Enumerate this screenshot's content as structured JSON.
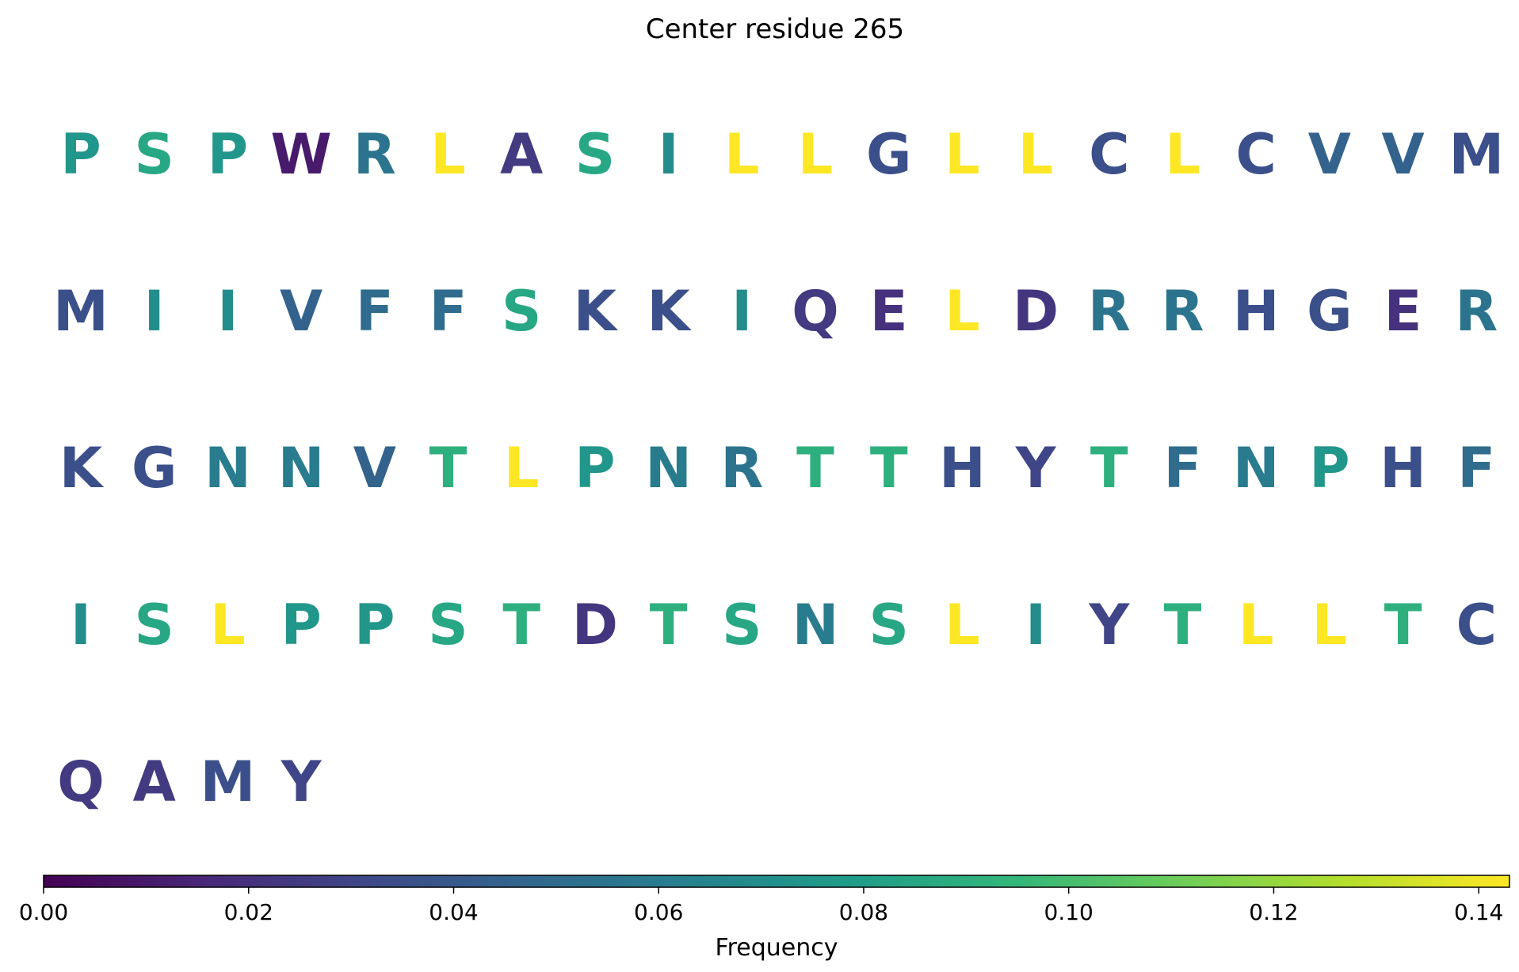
{
  "chart_data": {
    "type": "heatmap",
    "title": "Center residue 265",
    "colormap": "viridis",
    "colorbar": {
      "label": "Frequency",
      "range": [
        0,
        0.143
      ],
      "ticks": [
        "0.00",
        "0.02",
        "0.04",
        "0.06",
        "0.08",
        "0.10",
        "0.12",
        "0.14"
      ],
      "tick_values": [
        0,
        0.02,
        0.04,
        0.06,
        0.08,
        0.1,
        0.12,
        0.14
      ],
      "orientation": "horizontal",
      "placement": "bottom"
    },
    "columns": 20,
    "residues": [
      {
        "letter": "P",
        "value": 0.075
      },
      {
        "letter": "S",
        "value": 0.085
      },
      {
        "letter": "P",
        "value": 0.075
      },
      {
        "letter": "W",
        "value": 0.01
      },
      {
        "letter": "R",
        "value": 0.055
      },
      {
        "letter": "L",
        "value": 0.143
      },
      {
        "letter": "A",
        "value": 0.025
      },
      {
        "letter": "S",
        "value": 0.085
      },
      {
        "letter": "I",
        "value": 0.07
      },
      {
        "letter": "L",
        "value": 0.143
      },
      {
        "letter": "L",
        "value": 0.143
      },
      {
        "letter": "G",
        "value": 0.035
      },
      {
        "letter": "L",
        "value": 0.143
      },
      {
        "letter": "L",
        "value": 0.143
      },
      {
        "letter": "C",
        "value": 0.035
      },
      {
        "letter": "L",
        "value": 0.143
      },
      {
        "letter": "C",
        "value": 0.035
      },
      {
        "letter": "V",
        "value": 0.045
      },
      {
        "letter": "V",
        "value": 0.045
      },
      {
        "letter": "M",
        "value": 0.035
      },
      {
        "letter": "M",
        "value": 0.035
      },
      {
        "letter": "I",
        "value": 0.07
      },
      {
        "letter": "I",
        "value": 0.07
      },
      {
        "letter": "V",
        "value": 0.045
      },
      {
        "letter": "F",
        "value": 0.05
      },
      {
        "letter": "F",
        "value": 0.05
      },
      {
        "letter": "S",
        "value": 0.085
      },
      {
        "letter": "K",
        "value": 0.035
      },
      {
        "letter": "K",
        "value": 0.035
      },
      {
        "letter": "I",
        "value": 0.07
      },
      {
        "letter": "Q",
        "value": 0.025
      },
      {
        "letter": "E",
        "value": 0.02
      },
      {
        "letter": "L",
        "value": 0.143
      },
      {
        "letter": "D",
        "value": 0.022
      },
      {
        "letter": "R",
        "value": 0.055
      },
      {
        "letter": "R",
        "value": 0.055
      },
      {
        "letter": "H",
        "value": 0.035
      },
      {
        "letter": "G",
        "value": 0.035
      },
      {
        "letter": "E",
        "value": 0.02
      },
      {
        "letter": "R",
        "value": 0.055
      },
      {
        "letter": "K",
        "value": 0.035
      },
      {
        "letter": "G",
        "value": 0.035
      },
      {
        "letter": "N",
        "value": 0.06
      },
      {
        "letter": "N",
        "value": 0.06
      },
      {
        "letter": "V",
        "value": 0.045
      },
      {
        "letter": "T",
        "value": 0.09
      },
      {
        "letter": "L",
        "value": 0.143
      },
      {
        "letter": "P",
        "value": 0.075
      },
      {
        "letter": "N",
        "value": 0.06
      },
      {
        "letter": "R",
        "value": 0.055
      },
      {
        "letter": "T",
        "value": 0.09
      },
      {
        "letter": "T",
        "value": 0.09
      },
      {
        "letter": "H",
        "value": 0.035
      },
      {
        "letter": "Y",
        "value": 0.03
      },
      {
        "letter": "T",
        "value": 0.09
      },
      {
        "letter": "F",
        "value": 0.05
      },
      {
        "letter": "N",
        "value": 0.06
      },
      {
        "letter": "P",
        "value": 0.075
      },
      {
        "letter": "H",
        "value": 0.035
      },
      {
        "letter": "F",
        "value": 0.05
      },
      {
        "letter": "I",
        "value": 0.07
      },
      {
        "letter": "S",
        "value": 0.085
      },
      {
        "letter": "L",
        "value": 0.143
      },
      {
        "letter": "P",
        "value": 0.075
      },
      {
        "letter": "P",
        "value": 0.075
      },
      {
        "letter": "S",
        "value": 0.085
      },
      {
        "letter": "T",
        "value": 0.09
      },
      {
        "letter": "D",
        "value": 0.022
      },
      {
        "letter": "T",
        "value": 0.09
      },
      {
        "letter": "S",
        "value": 0.085
      },
      {
        "letter": "N",
        "value": 0.06
      },
      {
        "letter": "S",
        "value": 0.085
      },
      {
        "letter": "L",
        "value": 0.143
      },
      {
        "letter": "I",
        "value": 0.07
      },
      {
        "letter": "Y",
        "value": 0.03
      },
      {
        "letter": "T",
        "value": 0.09
      },
      {
        "letter": "L",
        "value": 0.143
      },
      {
        "letter": "L",
        "value": 0.143
      },
      {
        "letter": "T",
        "value": 0.09
      },
      {
        "letter": "C",
        "value": 0.035
      },
      {
        "letter": "Q",
        "value": 0.025
      },
      {
        "letter": "A",
        "value": 0.025
      },
      {
        "letter": "M",
        "value": 0.035
      },
      {
        "letter": "Y",
        "value": 0.03
      }
    ]
  }
}
